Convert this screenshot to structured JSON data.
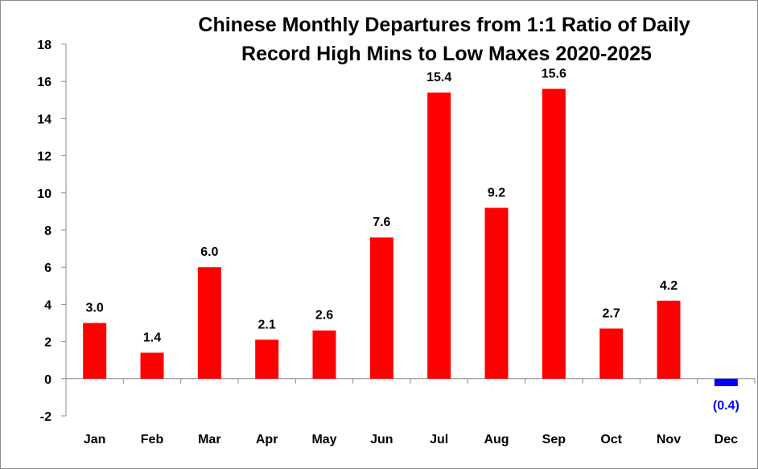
{
  "chart_data": {
    "type": "bar",
    "title": [
      "Chinese Monthly Departures from 1:1 Ratio of Daily",
      "Record High Mins to Low Maxes 2020-2025"
    ],
    "categories": [
      "Jan",
      "Feb",
      "Mar",
      "Apr",
      "May",
      "Jun",
      "Jul",
      "Aug",
      "Sep",
      "Oct",
      "Nov",
      "Dec"
    ],
    "values": [
      3.0,
      1.4,
      6.0,
      2.1,
      2.6,
      7.6,
      15.4,
      9.2,
      15.6,
      2.7,
      4.2,
      -0.4
    ],
    "data_labels": [
      "3.0",
      "1.4",
      "6.0",
      "2.1",
      "2.6",
      "7.6",
      "15.4",
      "9.2",
      "15.6",
      "2.7",
      "4.2",
      "(0.4)"
    ],
    "ylim": [
      -2,
      18
    ],
    "yticks": [
      -2,
      0,
      2,
      4,
      6,
      8,
      10,
      12,
      14,
      16,
      18
    ],
    "xlabel": "",
    "ylabel": "",
    "grid": false,
    "legend": "none",
    "colors": {
      "positive": "#ff0000",
      "negative": "#0000ff",
      "axis": "#8c8c8c",
      "positive_label": "#000000",
      "negative_label": "#0000ff"
    }
  }
}
